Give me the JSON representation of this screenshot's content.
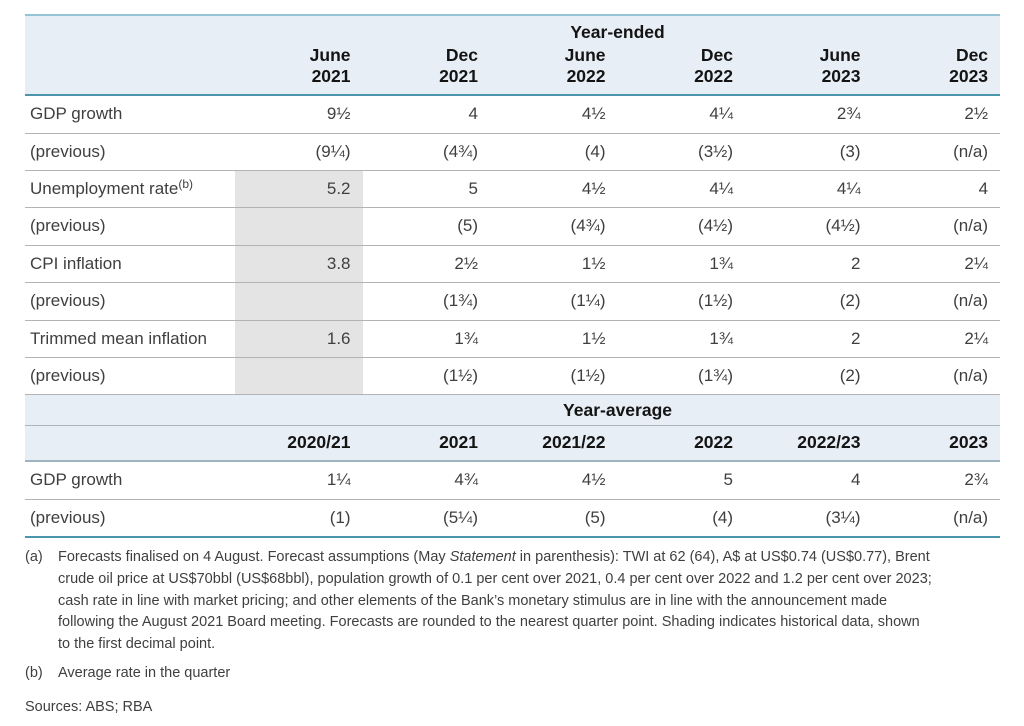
{
  "colors": {
    "band_background": "#e7eef5",
    "top_border": "#97c3d6",
    "teal_rule": "#4b96ad",
    "row_rule": "#b3b3b3",
    "historical_shading": "#e4e4e4",
    "text": "#3f3f3f",
    "header_text": "#141414"
  },
  "year_ended": {
    "title": "Year-ended",
    "columns": [
      {
        "line1": "June",
        "line2": "2021"
      },
      {
        "line1": "Dec",
        "line2": "2021"
      },
      {
        "line1": "June",
        "line2": "2022"
      },
      {
        "line1": "Dec",
        "line2": "2022"
      },
      {
        "line1": "June",
        "line2": "2023"
      },
      {
        "line1": "Dec",
        "line2": "2023"
      }
    ],
    "rows": [
      {
        "label": "GDP growth",
        "values": [
          "9½",
          "4",
          "4½",
          "4¼",
          "2¾",
          "2½"
        ]
      },
      {
        "label": "(previous)",
        "values": [
          "(9¼)",
          "(4¾)",
          "(4)",
          "(3½)",
          "(3)",
          "(n/a)"
        ]
      },
      {
        "label": "Unemployment rate",
        "sup": "(b)",
        "values": [
          "5.2",
          "5",
          "4½",
          "4¼",
          "4¼",
          "4"
        ]
      },
      {
        "label": "(previous)",
        "values": [
          "",
          "(5)",
          "(4¾)",
          "(4½)",
          "(4½)",
          "(n/a)"
        ]
      },
      {
        "label": "CPI inflation",
        "values": [
          "3.8",
          "2½",
          "1½",
          "1¾",
          "2",
          "2¼"
        ]
      },
      {
        "label": "(previous)",
        "values": [
          "",
          "(1¾)",
          "(1¼)",
          "(1½)",
          "(2)",
          "(n/a)"
        ]
      },
      {
        "label": "Trimmed mean inflation",
        "values": [
          "1.6",
          "1¾",
          "1½",
          "1¾",
          "2",
          "2¼"
        ]
      },
      {
        "label": "(previous)",
        "values": [
          "",
          "(1½)",
          "(1½)",
          "(1¾)",
          "(2)",
          "(n/a)"
        ]
      }
    ]
  },
  "year_average": {
    "title": "Year-average",
    "columns": [
      "2020/21",
      "2021",
      "2021/22",
      "2022",
      "2022/23",
      "2023"
    ],
    "rows": [
      {
        "label": "GDP growth",
        "values": [
          "1¼",
          "4¾",
          "4½",
          "5",
          "4",
          "2¾"
        ]
      },
      {
        "label": "(previous)",
        "values": [
          "(1)",
          "(5¼)",
          "(5)",
          "(4)",
          "(3¼)",
          "(n/a)"
        ]
      }
    ]
  },
  "footnotes": {
    "a_marker": "(a)",
    "a_pre": "Forecasts finalised on 4 August. Forecast assumptions (May ",
    "a_italic": "Statement",
    "a_post": " in parenthesis): TWI at 62 (64), A$ at US$0.74 (US$0.77), Brent crude oil price at US$70bbl (US$68bbl), population growth of 0.1 per cent over 2021, 0.4 per cent over 2022 and 1.2 per cent over 2023; cash rate in line with market pricing; and other elements of the Bank’s monetary stimulus are in line with the announcement made following the August 2021 Board meeting. Forecasts are rounded to the nearest quarter point. Shading indicates historical data, shown to the first decimal point.",
    "b_marker": "(b)",
    "b_text": "Average rate in the quarter",
    "sources": "Sources: ABS; RBA"
  }
}
